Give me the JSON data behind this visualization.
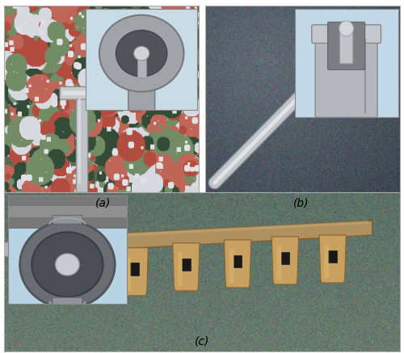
{
  "figure_width": 5.0,
  "figure_height": 4.37,
  "dpi": 100,
  "background_color": "#ffffff",
  "label_a": "(a)",
  "label_b": "(b)",
  "label_c": "(c)",
  "label_fontsize": 10,
  "panel_border_color": "#aaaaaa",
  "panel_border_lw": 0.8,
  "inset_a_bg": "#c8dce8",
  "inset_b_bg": "#c0d8e8",
  "inset_c_bg": "#b8d4e4",
  "granite_base": "#7a8a70",
  "photo_b_bg": "#606870",
  "photo_c_bg": "#5a6860"
}
